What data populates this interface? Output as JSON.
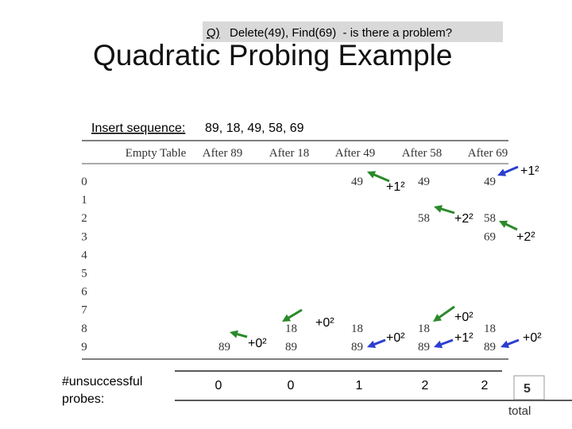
{
  "question": {
    "label": "Q)",
    "text": "Delete(49), Find(69)  - is there a problem?"
  },
  "title": "Quadratic Probing Example",
  "insert": {
    "label": "Insert sequence:",
    "text": "89, 18, 49, 58, 69"
  },
  "table": {
    "columns": [
      "Empty Table",
      "After 89",
      "After 18",
      "After 49",
      "After 58",
      "After 69"
    ],
    "row_labels": [
      0,
      1,
      2,
      3,
      4,
      5,
      6,
      7,
      8,
      9
    ],
    "cells": [
      [
        null,
        null,
        null,
        null,
        null,
        null,
        null,
        null,
        null,
        null
      ],
      [
        null,
        null,
        null,
        null,
        null,
        null,
        null,
        null,
        null,
        89
      ],
      [
        null,
        null,
        null,
        null,
        null,
        null,
        null,
        null,
        18,
        89
      ],
      [
        49,
        null,
        null,
        null,
        null,
        null,
        null,
        null,
        18,
        89
      ],
      [
        49,
        null,
        58,
        null,
        null,
        null,
        null,
        null,
        18,
        89
      ],
      [
        49,
        null,
        58,
        69,
        null,
        null,
        null,
        null,
        18,
        89
      ]
    ]
  },
  "annotations": [
    "+0²",
    "+0²",
    "+0²",
    "+1²",
    "+0²",
    "+1²",
    "+2²",
    "+0²",
    "+1²",
    "+2²"
  ],
  "probes": {
    "label": "#unsuccessful probes:",
    "values": [
      0,
      0,
      1,
      2,
      2
    ],
    "total": 5,
    "total_label": "total"
  }
}
